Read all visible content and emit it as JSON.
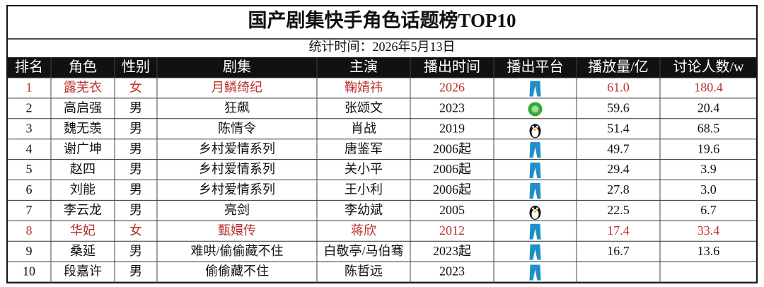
{
  "title": "国产剧集快手角色话题榜TOP10",
  "subtitle": "统计时间：2026年5月13日",
  "table": {
    "header": [
      "排名",
      "角色",
      "性别",
      "剧集",
      "主演",
      "播出时间",
      "播出平台",
      "播放量/亿",
      "讨论人数/w"
    ],
    "rows": [
      {
        "rank": "1",
        "role": "露芜衣",
        "gender": "女",
        "drama": "月鳞绮纪",
        "actor": "鞠婧祎",
        "year": "2026",
        "views": "61.0",
        "discussion": "180.4",
        "highlight": true
      },
      {
        "rank": "2",
        "role": "高启强",
        "gender": "男",
        "drama": "狂飙",
        "actor": "张颂文",
        "year": "2023",
        "views": "59.6",
        "discussion": "20.4",
        "highlight": false
      },
      {
        "rank": "3",
        "role": "魏无羡",
        "gender": "男",
        "drama": "陈情令",
        "actor": "肖战",
        "year": "2019",
        "views": "51.4",
        "discussion": "68.5",
        "highlight": false
      },
      {
        "rank": "4",
        "role": "谢广坤",
        "gender": "男",
        "drama": "乡村爱情系列",
        "actor": "唐鉴军",
        "year": "2006起",
        "views": "49.7",
        "discussion": "19.6",
        "highlight": false
      },
      {
        "rank": "5",
        "role": "赵四",
        "gender": "男",
        "drama": "乡村爱情系列",
        "actor": "关小平",
        "year": "2006起",
        "views": "29.4",
        "discussion": "3.9",
        "highlight": false
      },
      {
        "rank": "6",
        "role": "刘能",
        "gender": "男",
        "drama": "乡村爱情系列",
        "actor": "王小利",
        "year": "2006起",
        "views": "27.8",
        "discussion": "3.0",
        "highlight": false
      },
      {
        "rank": "7",
        "role": "李云龙",
        "gender": "男",
        "drama": "亮剑",
        "actor": "李幼斌",
        "year": "2005",
        "views": "22.5",
        "discussion": "6.7",
        "highlight": false
      },
      {
        "rank": "8",
        "role": "华妃",
        "gender": "女",
        "drama": "甄嬛传",
        "actor": "蒋欣",
        "year": "2012",
        "views": "17.4",
        "discussion": "33.4",
        "highlight": true
      },
      {
        "rank": "9",
        "role": "桑延",
        "gender": "男",
        "drama": "难哄/偷偷藏不住",
        "actor": "白敬亭/马伯骞",
        "year": "2023起",
        "views": "16.7",
        "discussion": "13.6",
        "highlight": false
      },
      {
        "rank": "10",
        "role": "段嘉许",
        "gender": "男",
        "drama": "偷偷藏不住",
        "actor": "陈哲远",
        "year": "2023",
        "views": "",
        "discussion": "",
        "highlight": false
      }
    ]
  }
}
